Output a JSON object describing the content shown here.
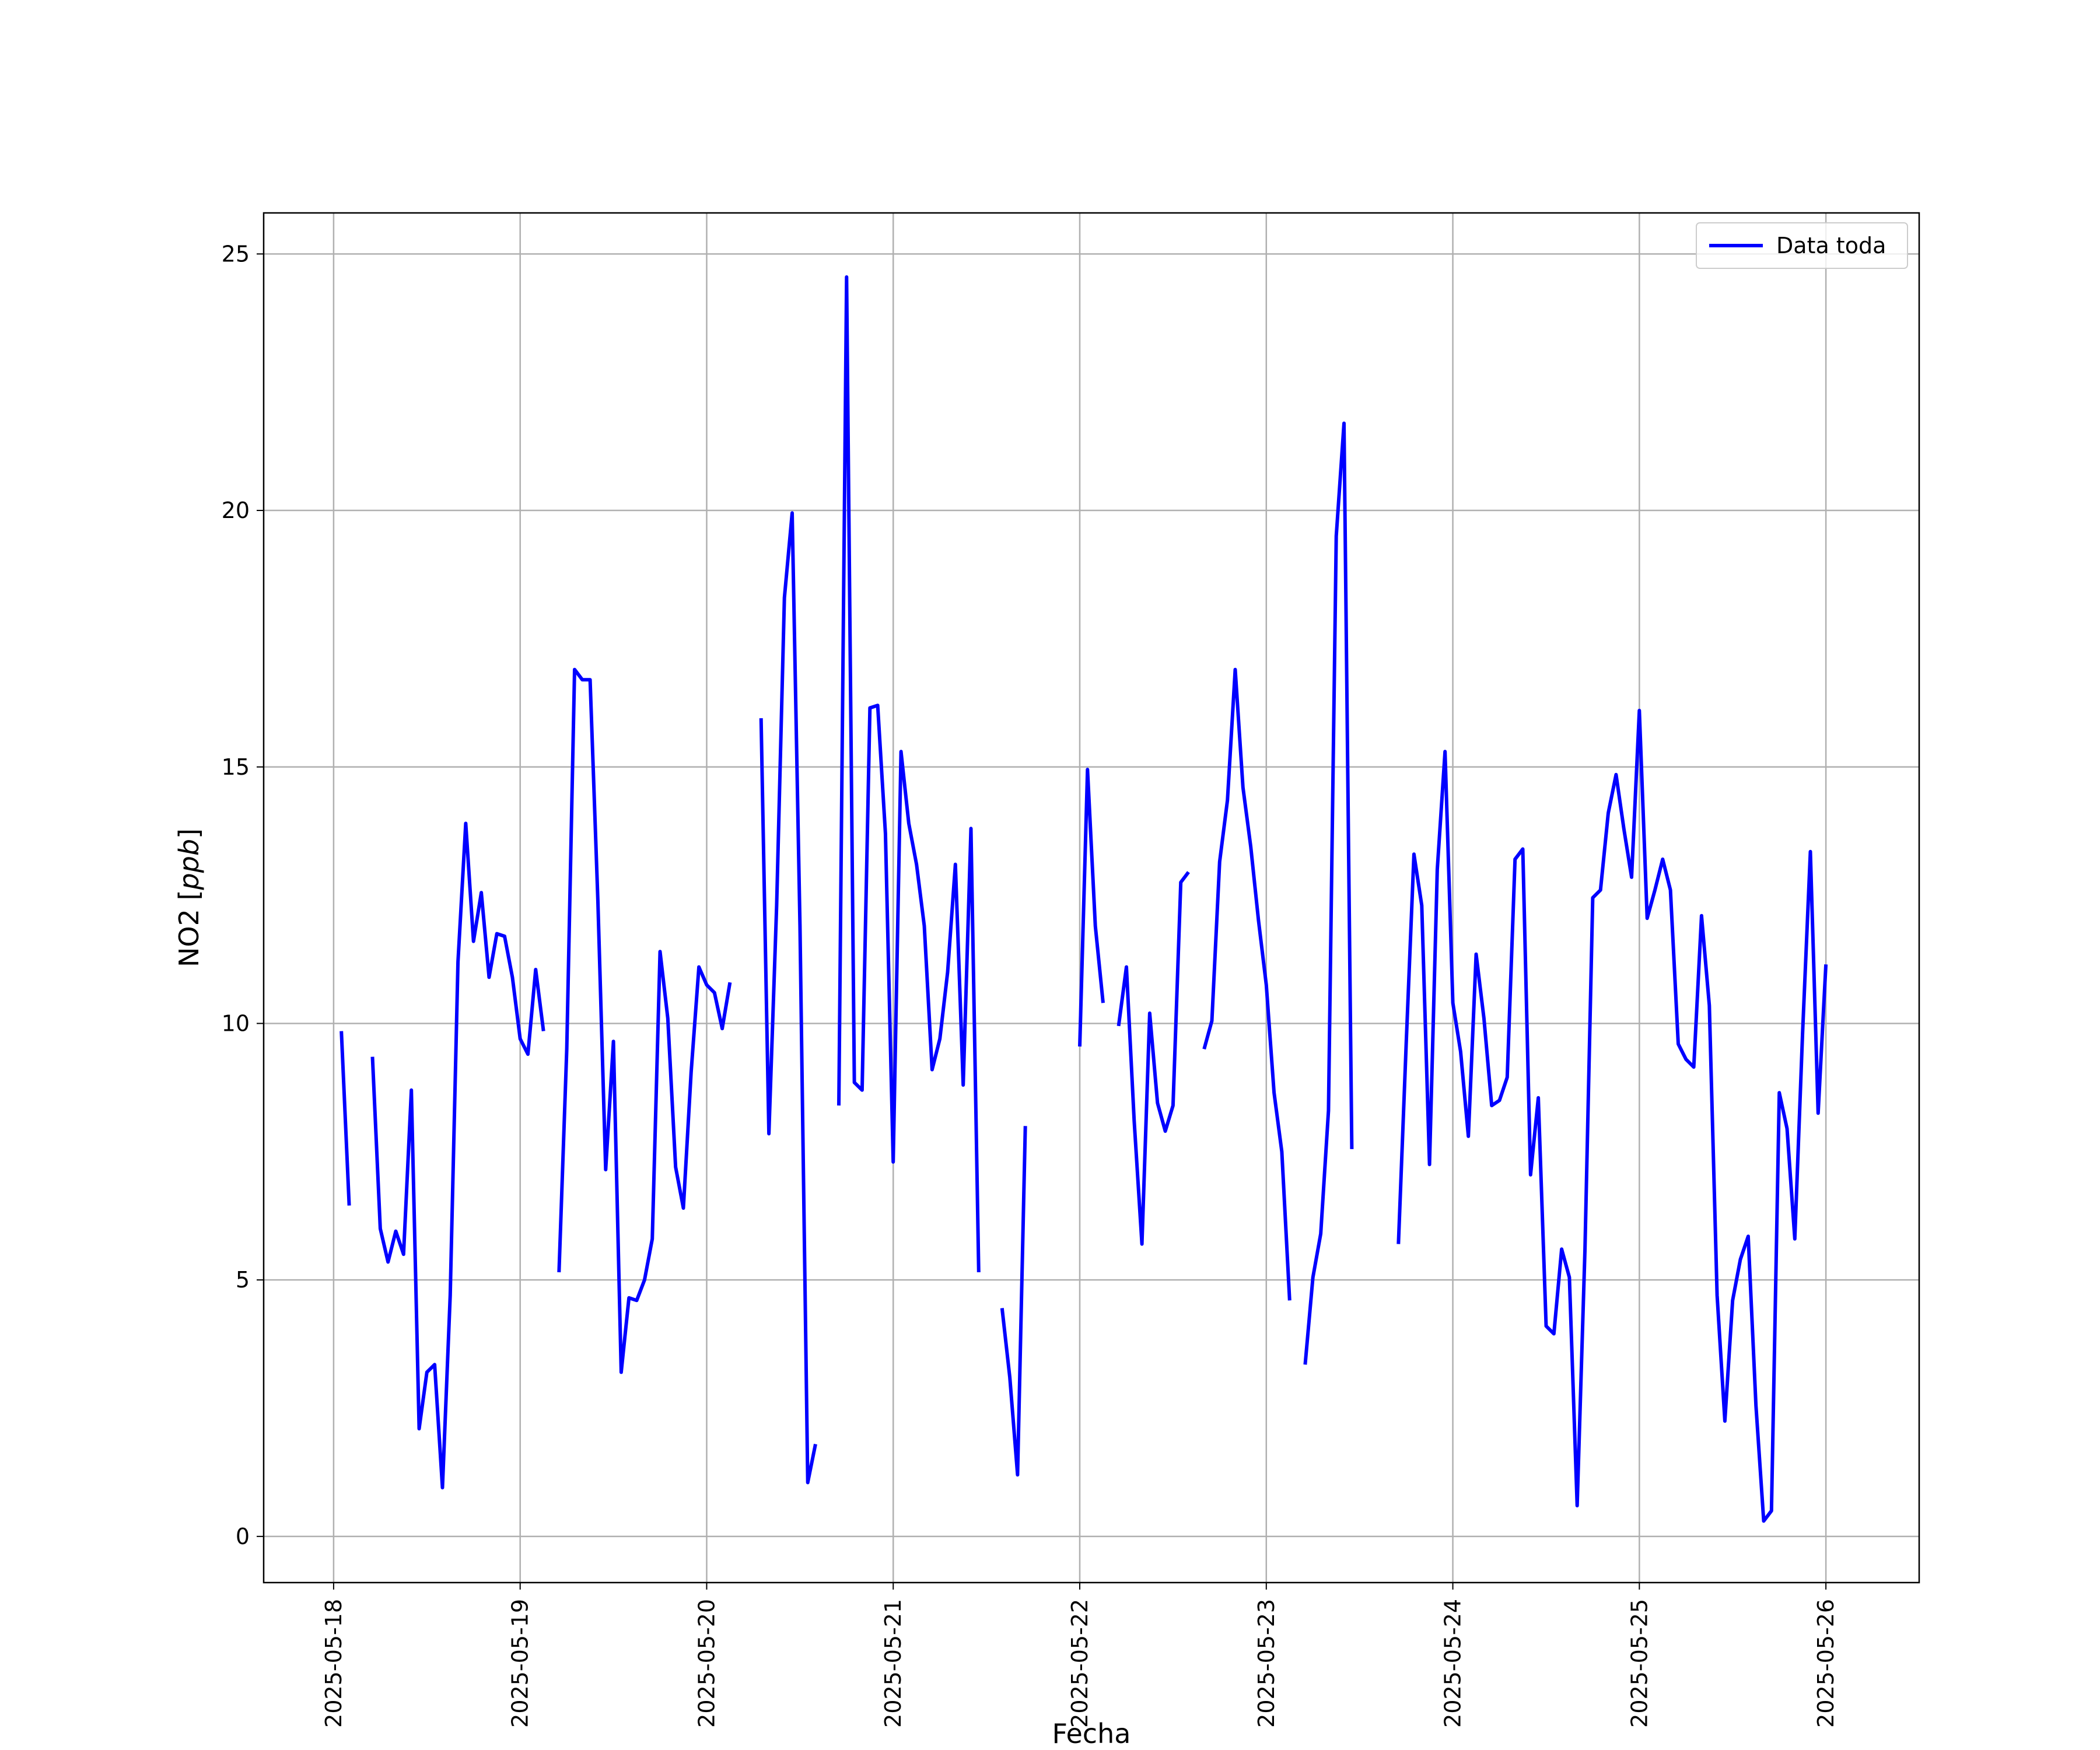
{
  "chart_data": {
    "type": "line",
    "title": "",
    "xlabel": "Fecha",
    "ylabel_main": "NO2 [",
    "ylabel_unit": "ppb",
    "ylabel_close": "]",
    "xlim": [
      "2025-05-17 15:00",
      "2025-05-26 12:00"
    ],
    "ylim": [
      -0.9,
      25.8
    ],
    "yticks": [
      0,
      5,
      10,
      15,
      20,
      25
    ],
    "xticks": [
      "2025-05-18",
      "2025-05-19",
      "2025-05-20",
      "2025-05-21",
      "2025-05-22",
      "2025-05-23",
      "2025-05-24",
      "2025-05-25",
      "2025-05-26"
    ],
    "grid": true,
    "legend_position": "top-right",
    "colors": {
      "series": "#0000ff",
      "grid": "#b0b0b0",
      "frame": "#000000",
      "legend_border": "#cccccc"
    },
    "series": [
      {
        "name": "Data toda",
        "segments": [
          [
            [
              "2025-05-18 01:00",
              9.85
            ],
            [
              "2025-05-18 02:00",
              6.45
            ]
          ],
          [
            [
              "2025-05-18 05:00",
              9.35
            ],
            [
              "2025-05-18 06:00",
              6.0
            ],
            [
              "2025-05-18 07:00",
              5.35
            ],
            [
              "2025-05-18 08:00",
              5.95
            ],
            [
              "2025-05-18 09:00",
              5.5
            ],
            [
              "2025-05-18 10:00",
              8.7
            ],
            [
              "2025-05-18 11:00",
              2.1
            ],
            [
              "2025-05-18 12:00",
              3.2
            ],
            [
              "2025-05-18 13:00",
              3.35
            ],
            [
              "2025-05-18 14:00",
              0.95
            ],
            [
              "2025-05-18 15:00",
              4.7
            ],
            [
              "2025-05-18 16:00",
              11.2
            ],
            [
              "2025-05-18 17:00",
              13.9
            ],
            [
              "2025-05-18 18:00",
              11.6
            ],
            [
              "2025-05-18 19:00",
              12.55
            ],
            [
              "2025-05-18 20:00",
              10.9
            ],
            [
              "2025-05-18 21:00",
              11.75
            ],
            [
              "2025-05-18 22:00",
              11.7
            ],
            [
              "2025-05-18 23:00",
              10.9
            ],
            [
              "2025-05-19 00:00",
              9.7
            ],
            [
              "2025-05-19 01:00",
              9.4
            ],
            [
              "2025-05-19 02:00",
              11.05
            ],
            [
              "2025-05-19 03:00",
              9.85
            ]
          ],
          [
            [
              "2025-05-19 05:00",
              5.15
            ],
            [
              "2025-05-19 06:00",
              9.5
            ],
            [
              "2025-05-19 07:00",
              16.9
            ],
            [
              "2025-05-19 08:00",
              16.7
            ],
            [
              "2025-05-19 09:00",
              16.7
            ],
            [
              "2025-05-19 10:00",
              12.4
            ],
            [
              "2025-05-19 11:00",
              7.15
            ],
            [
              "2025-05-19 12:00",
              9.65
            ],
            [
              "2025-05-19 13:00",
              3.2
            ],
            [
              "2025-05-19 14:00",
              4.65
            ],
            [
              "2025-05-19 15:00",
              4.6
            ],
            [
              "2025-05-19 16:00",
              5.0
            ],
            [
              "2025-05-19 17:00",
              5.8
            ],
            [
              "2025-05-19 18:00",
              11.4
            ],
            [
              "2025-05-19 19:00",
              10.1
            ],
            [
              "2025-05-19 20:00",
              7.2
            ],
            [
              "2025-05-19 21:00",
              6.4
            ],
            [
              "2025-05-19 22:00",
              9.05
            ],
            [
              "2025-05-19 23:00",
              11.1
            ],
            [
              "2025-05-20 00:00",
              10.75
            ],
            [
              "2025-05-20 01:00",
              10.6
            ],
            [
              "2025-05-20 02:00",
              9.9
            ],
            [
              "2025-05-20 03:00",
              10.8
            ]
          ],
          [
            [
              "2025-05-20 07:00",
              15.95
            ],
            [
              "2025-05-20 08:00",
              7.85
            ],
            [
              "2025-05-20 09:00",
              12.3
            ],
            [
              "2025-05-20 10:00",
              18.3
            ],
            [
              "2025-05-20 11:00",
              19.95
            ],
            [
              "2025-05-20 12:00",
              11.9
            ],
            [
              "2025-05-20 13:00",
              1.05
            ],
            [
              "2025-05-20 14:00",
              1.8
            ]
          ],
          [
            [
              "2025-05-20 17:00",
              8.4
            ],
            [
              "2025-05-20 18:00",
              24.55
            ],
            [
              "2025-05-20 19:00",
              8.85
            ],
            [
              "2025-05-20 20:00",
              8.7
            ],
            [
              "2025-05-20 21:00",
              16.15
            ],
            [
              "2025-05-20 22:00",
              16.2
            ],
            [
              "2025-05-20 23:00",
              13.7
            ],
            [
              "2025-05-21 00:00",
              7.3
            ],
            [
              "2025-05-21 01:00",
              15.3
            ],
            [
              "2025-05-21 02:00",
              13.9
            ],
            [
              "2025-05-21 03:00",
              13.1
            ],
            [
              "2025-05-21 04:00",
              11.9
            ],
            [
              "2025-05-21 05:00",
              9.1
            ],
            [
              "2025-05-21 06:00",
              9.7
            ],
            [
              "2025-05-21 07:00",
              11.0
            ],
            [
              "2025-05-21 08:00",
              13.1
            ],
            [
              "2025-05-21 09:00",
              8.8
            ],
            [
              "2025-05-21 10:00",
              13.8
            ],
            [
              "2025-05-21 11:00",
              5.15
            ]
          ],
          [
            [
              "2025-05-21 14:00",
              4.45
            ],
            [
              "2025-05-21 15:00",
              3.1
            ],
            [
              "2025-05-21 16:00",
              1.2
            ],
            [
              "2025-05-21 17:00",
              8.0
            ]
          ],
          [
            [
              "2025-05-22 00:00",
              9.55
            ],
            [
              "2025-05-22 01:00",
              14.95
            ],
            [
              "2025-05-22 02:00",
              11.9
            ],
            [
              "2025-05-22 03:00",
              10.4
            ]
          ],
          [
            [
              "2025-05-22 05:00",
              9.95
            ],
            [
              "2025-05-22 06:00",
              11.1
            ],
            [
              "2025-05-22 07:00",
              8.1
            ],
            [
              "2025-05-22 08:00",
              5.7
            ],
            [
              "2025-05-22 09:00",
              10.2
            ],
            [
              "2025-05-22 10:00",
              8.45
            ],
            [
              "2025-05-22 11:00",
              7.9
            ],
            [
              "2025-05-22 12:00",
              8.4
            ],
            [
              "2025-05-22 13:00",
              12.75
            ],
            [
              "2025-05-22 14:00",
              12.95
            ]
          ],
          [
            [
              "2025-05-22 16:00",
              9.5
            ],
            [
              "2025-05-22 17:00",
              10.05
            ],
            [
              "2025-05-22 18:00",
              13.15
            ],
            [
              "2025-05-22 19:00",
              14.35
            ],
            [
              "2025-05-22 20:00",
              16.9
            ],
            [
              "2025-05-22 21:00",
              14.6
            ],
            [
              "2025-05-22 22:00",
              13.45
            ],
            [
              "2025-05-22 23:00",
              12.0
            ],
            [
              "2025-05-23 00:00",
              10.75
            ],
            [
              "2025-05-23 01:00",
              8.65
            ],
            [
              "2025-05-23 02:00",
              7.5
            ],
            [
              "2025-05-23 03:00",
              4.6
            ]
          ],
          [
            [
              "2025-05-23 05:00",
              3.35
            ],
            [
              "2025-05-23 06:00",
              5.05
            ],
            [
              "2025-05-23 07:00",
              5.9
            ],
            [
              "2025-05-23 08:00",
              8.3
            ],
            [
              "2025-05-23 09:00",
              19.5
            ],
            [
              "2025-05-23 10:00",
              21.7
            ],
            [
              "2025-05-23 11:00",
              7.55
            ]
          ],
          [
            [
              "2025-05-23 17:00",
              5.7
            ],
            [
              "2025-05-23 18:00",
              9.6
            ],
            [
              "2025-05-23 19:00",
              13.3
            ],
            [
              "2025-05-23 20:00",
              12.3
            ],
            [
              "2025-05-23 21:00",
              7.25
            ],
            [
              "2025-05-23 22:00",
              13.0
            ],
            [
              "2025-05-23 23:00",
              15.3
            ],
            [
              "2025-05-24 00:00",
              10.4
            ],
            [
              "2025-05-24 01:00",
              9.45
            ],
            [
              "2025-05-24 02:00",
              7.8
            ],
            [
              "2025-05-24 03:00",
              11.35
            ],
            [
              "2025-05-24 04:00",
              10.1
            ],
            [
              "2025-05-24 05:00",
              8.4
            ],
            [
              "2025-05-24 06:00",
              8.5
            ],
            [
              "2025-05-24 07:00",
              8.95
            ],
            [
              "2025-05-24 08:00",
              13.2
            ],
            [
              "2025-05-24 09:00",
              13.4
            ],
            [
              "2025-05-24 10:00",
              7.05
            ],
            [
              "2025-05-24 11:00",
              8.55
            ],
            [
              "2025-05-24 12:00",
              4.1
            ],
            [
              "2025-05-24 13:00",
              3.95
            ],
            [
              "2025-05-24 14:00",
              5.6
            ],
            [
              "2025-05-24 15:00",
              5.05
            ],
            [
              "2025-05-24 16:00",
              0.6
            ],
            [
              "2025-05-24 17:00",
              5.6
            ],
            [
              "2025-05-24 18:00",
              12.45
            ],
            [
              "2025-05-24 19:00",
              12.6
            ],
            [
              "2025-05-24 20:00",
              14.1
            ],
            [
              "2025-05-24 21:00",
              14.85
            ],
            [
              "2025-05-24 22:00",
              13.8
            ],
            [
              "2025-05-24 23:00",
              12.85
            ],
            [
              "2025-05-25 00:00",
              16.1
            ],
            [
              "2025-05-25 01:00",
              12.05
            ],
            [
              "2025-05-25 02:00",
              12.6
            ],
            [
              "2025-05-25 03:00",
              13.2
            ],
            [
              "2025-05-25 04:00",
              12.6
            ],
            [
              "2025-05-25 05:00",
              9.6
            ],
            [
              "2025-05-25 06:00",
              9.3
            ],
            [
              "2025-05-25 07:00",
              9.15
            ],
            [
              "2025-05-25 08:00",
              12.1
            ],
            [
              "2025-05-25 09:00",
              10.35
            ],
            [
              "2025-05-25 10:00",
              4.7
            ],
            [
              "2025-05-25 11:00",
              2.25
            ],
            [
              "2025-05-25 12:00",
              4.6
            ],
            [
              "2025-05-25 13:00",
              5.4
            ],
            [
              "2025-05-25 14:00",
              5.85
            ],
            [
              "2025-05-25 15:00",
              2.55
            ],
            [
              "2025-05-25 16:00",
              0.3
            ],
            [
              "2025-05-25 17:00",
              0.5
            ],
            [
              "2025-05-25 18:00",
              8.65
            ],
            [
              "2025-05-25 19:00",
              7.95
            ],
            [
              "2025-05-25 20:00",
              5.8
            ],
            [
              "2025-05-25 21:00",
              9.8
            ],
            [
              "2025-05-25 22:00",
              13.35
            ],
            [
              "2025-05-25 23:00",
              8.25
            ],
            [
              "2025-05-26 00:00",
              11.15
            ]
          ]
        ]
      }
    ]
  }
}
